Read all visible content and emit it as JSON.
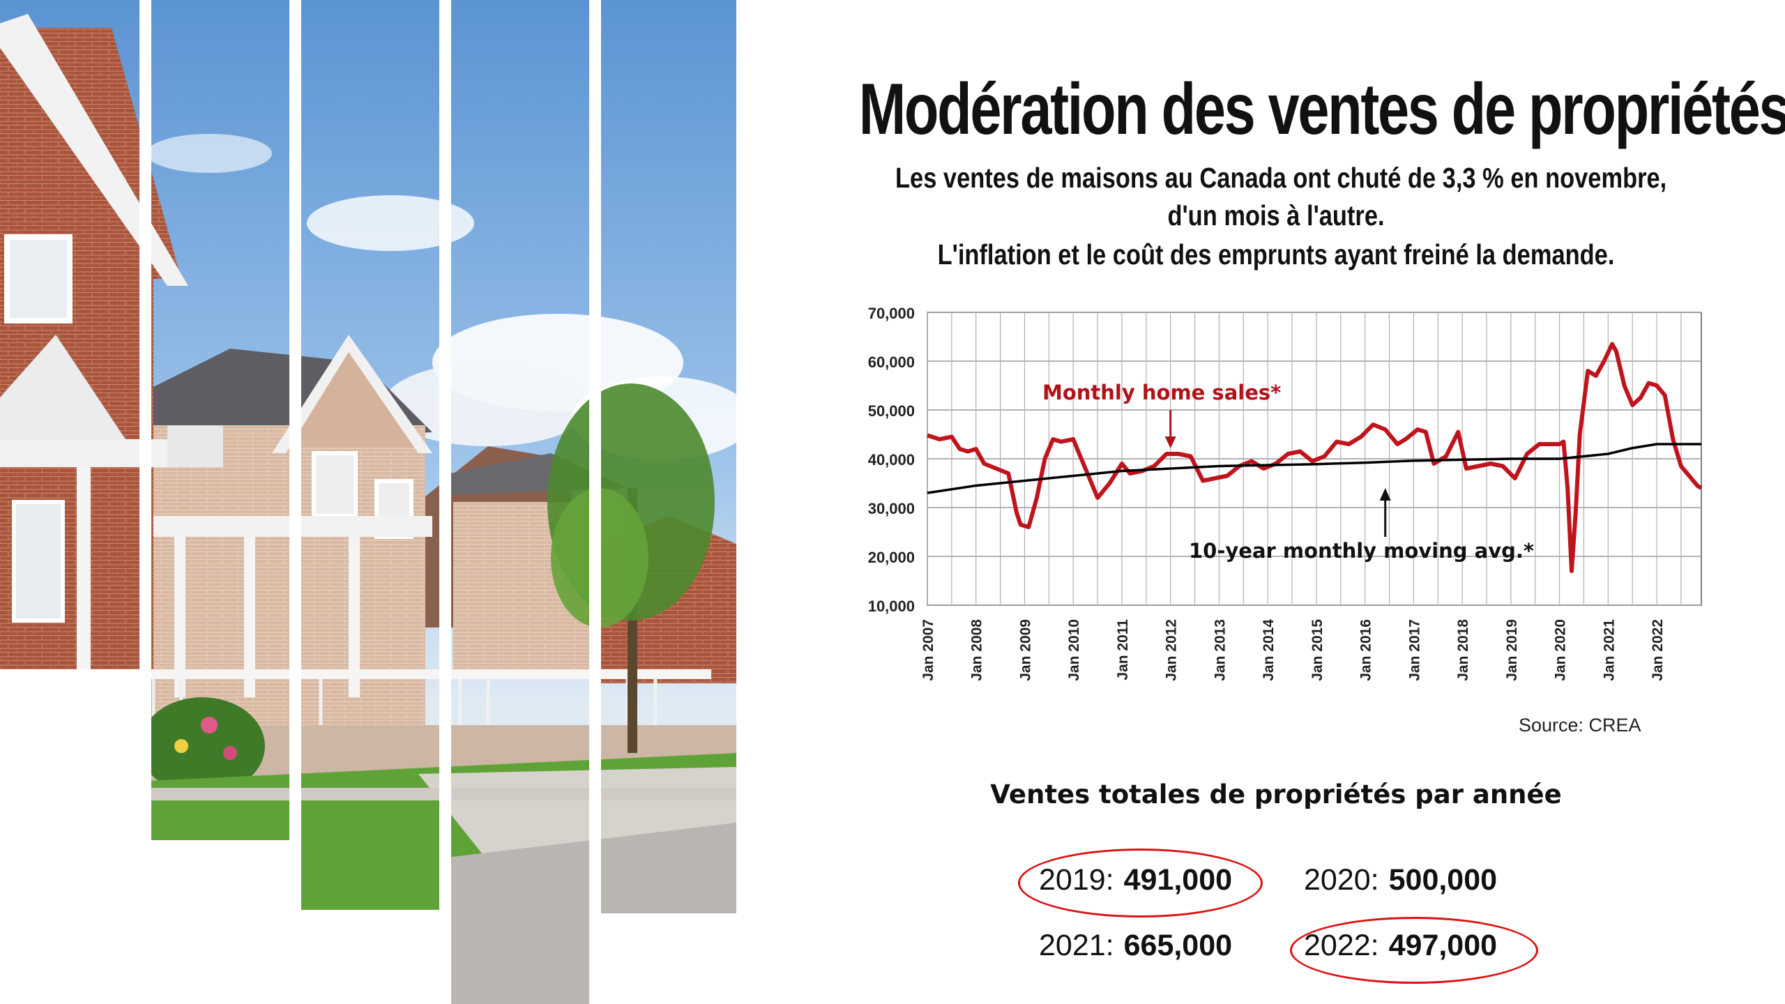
{
  "header": {
    "title": "Modération des ventes de propriétés",
    "subtitle_lines": [
      "Les ventes de maisons au Canada ont chuté de 3,3 % en novembre,",
      "d'un mois à l'autre.",
      "L'inflation et le coût des emprunts ayant freiné la demande."
    ]
  },
  "chart_data": {
    "type": "line",
    "x_range": [
      "2007-01",
      "2022-12"
    ],
    "ylim": [
      10000,
      70000
    ],
    "y_ticks": [
      "10,000",
      "20,000",
      "30,000",
      "40,000",
      "50,000",
      "60,000",
      "70,000"
    ],
    "x_ticks": [
      "Jan 2007",
      "Jan 2008",
      "Jan 2009",
      "Jan 2010",
      "Jan 2011",
      "Jan 2012",
      "Jan 2013",
      "Jan 2014",
      "Jan 2015",
      "Jan 2016",
      "Jan 2017",
      "Jan 2018",
      "Jan 2019",
      "Jan 2020",
      "Jan 2021",
      "Jan 2022"
    ],
    "grid": true,
    "annotations": [
      "Monthly home sales*",
      "10-year monthly moving avg.*"
    ],
    "series": [
      {
        "name": "Monthly home sales*",
        "color": "#c0141c",
        "points": [
          [
            "2007-01",
            44800
          ],
          [
            "2007-04",
            44000
          ],
          [
            "2007-07",
            44500
          ],
          [
            "2007-09",
            42000
          ],
          [
            "2007-11",
            41500
          ],
          [
            "2008-01",
            42000
          ],
          [
            "2008-03",
            39000
          ],
          [
            "2008-06",
            38000
          ],
          [
            "2008-09",
            37000
          ],
          [
            "2008-11",
            29000
          ],
          [
            "2008-12",
            26500
          ],
          [
            "2009-02",
            26000
          ],
          [
            "2009-04",
            32000
          ],
          [
            "2009-06",
            40000
          ],
          [
            "2009-08",
            44000
          ],
          [
            "2009-10",
            43500
          ],
          [
            "2010-01",
            44000
          ],
          [
            "2010-03",
            40000
          ],
          [
            "2010-05",
            36000
          ],
          [
            "2010-07",
            32000
          ],
          [
            "2010-10",
            35000
          ],
          [
            "2011-01",
            39000
          ],
          [
            "2011-03",
            37000
          ],
          [
            "2011-06",
            37500
          ],
          [
            "2011-09",
            38500
          ],
          [
            "2011-12",
            41000
          ],
          [
            "2012-03",
            41000
          ],
          [
            "2012-06",
            40500
          ],
          [
            "2012-09",
            35500
          ],
          [
            "2012-12",
            36000
          ],
          [
            "2013-03",
            36500
          ],
          [
            "2013-06",
            38500
          ],
          [
            "2013-09",
            39500
          ],
          [
            "2013-12",
            38000
          ],
          [
            "2014-03",
            39000
          ],
          [
            "2014-06",
            41000
          ],
          [
            "2014-09",
            41500
          ],
          [
            "2014-12",
            39500
          ],
          [
            "2015-03",
            40500
          ],
          [
            "2015-06",
            43500
          ],
          [
            "2015-09",
            43000
          ],
          [
            "2015-12",
            44500
          ],
          [
            "2016-03",
            47000
          ],
          [
            "2016-06",
            46000
          ],
          [
            "2016-09",
            43000
          ],
          [
            "2016-11",
            44000
          ],
          [
            "2017-02",
            46000
          ],
          [
            "2017-04",
            45500
          ],
          [
            "2017-06",
            39000
          ],
          [
            "2017-09",
            40500
          ],
          [
            "2017-12",
            45500
          ],
          [
            "2018-02",
            38000
          ],
          [
            "2018-05",
            38500
          ],
          [
            "2018-08",
            39000
          ],
          [
            "2018-11",
            38500
          ],
          [
            "2019-02",
            36000
          ],
          [
            "2019-05",
            41000
          ],
          [
            "2019-08",
            43000
          ],
          [
            "2019-11",
            43000
          ],
          [
            "2020-01",
            43000
          ],
          [
            "2020-02",
            43500
          ],
          [
            "2020-03",
            34000
          ],
          [
            "2020-04",
            17000
          ],
          [
            "2020-05",
            29000
          ],
          [
            "2020-06",
            45000
          ],
          [
            "2020-08",
            58000
          ],
          [
            "2020-10",
            57000
          ],
          [
            "2020-12",
            60000
          ],
          [
            "2021-02",
            63500
          ],
          [
            "2021-03",
            62000
          ],
          [
            "2021-05",
            55000
          ],
          [
            "2021-07",
            51000
          ],
          [
            "2021-09",
            52500
          ],
          [
            "2021-11",
            55500
          ],
          [
            "2022-01",
            55000
          ],
          [
            "2022-03",
            53000
          ],
          [
            "2022-05",
            44000
          ],
          [
            "2022-07",
            38500
          ],
          [
            "2022-09",
            36500
          ],
          [
            "2022-11",
            34500
          ],
          [
            "2022-12",
            34000
          ]
        ]
      },
      {
        "name": "10-year monthly moving avg.*",
        "color": "#000000",
        "points": [
          [
            "2007-01",
            33000
          ],
          [
            "2008-01",
            34500
          ],
          [
            "2009-01",
            35500
          ],
          [
            "2010-01",
            36500
          ],
          [
            "2011-01",
            37500
          ],
          [
            "2012-01",
            38000
          ],
          [
            "2013-01",
            38500
          ],
          [
            "2014-01",
            38700
          ],
          [
            "2015-01",
            38900
          ],
          [
            "2016-01",
            39200
          ],
          [
            "2017-01",
            39600
          ],
          [
            "2018-01",
            39800
          ],
          [
            "2019-01",
            40000
          ],
          [
            "2020-01",
            40000
          ],
          [
            "2021-01",
            41000
          ],
          [
            "2021-07",
            42200
          ],
          [
            "2022-01",
            43000
          ],
          [
            "2022-12",
            43000
          ]
        ]
      }
    ]
  },
  "source": "Source: CREA",
  "totals": {
    "title": "Ventes totales de propriétés par année",
    "items": [
      {
        "year": "2019:",
        "value": "491,000",
        "circled": true
      },
      {
        "year": "2020:",
        "value": "500,000",
        "circled": false
      },
      {
        "year": "2021:",
        "value": "665,000",
        "circled": false
      },
      {
        "year": "2022:",
        "value": "497,000",
        "circled": true
      }
    ]
  }
}
